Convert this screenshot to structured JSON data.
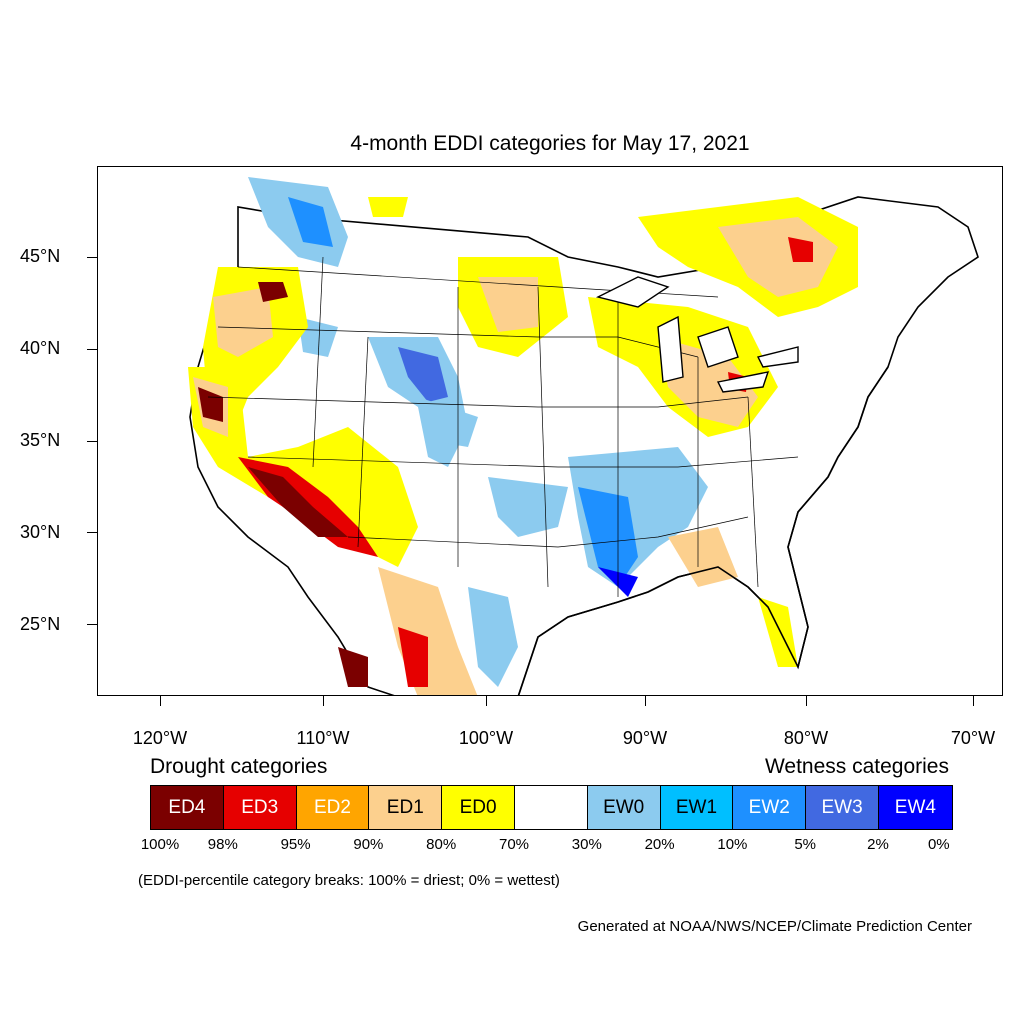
{
  "title": "4-month EDDI categories for May 17, 2021",
  "lat_labels": [
    "45°N",
    "40°N",
    "35°N",
    "30°N",
    "25°N"
  ],
  "lon_labels": [
    "120°W",
    "110°W",
    "100°W",
    "90°W",
    "80°W",
    "70°W"
  ],
  "drought_heading": "Drought categories",
  "wetness_heading": "Wetness categories",
  "legend": [
    {
      "label": "ED4",
      "color": "#7b0000",
      "text_color": "#ffffff"
    },
    {
      "label": "ED3",
      "color": "#e60000",
      "text_color": "#ffffff"
    },
    {
      "label": "ED2",
      "color": "#ffa500",
      "text_color": "#ffffff"
    },
    {
      "label": "ED1",
      "color": "#fcd08e",
      "text_color": "#000000"
    },
    {
      "label": "ED0",
      "color": "#ffff00",
      "text_color": "#000000"
    },
    {
      "label": "",
      "color": "#ffffff",
      "text_color": "#000000"
    },
    {
      "label": "EW0",
      "color": "#8ccbef",
      "text_color": "#000000"
    },
    {
      "label": "EW1",
      "color": "#00bfff",
      "text_color": "#000000"
    },
    {
      "label": "EW2",
      "color": "#1e90ff",
      "text_color": "#ffffff"
    },
    {
      "label": "EW3",
      "color": "#4169e1",
      "text_color": "#ffffff"
    },
    {
      "label": "EW4",
      "color": "#0000ff",
      "text_color": "#ffffff"
    }
  ],
  "percentiles": [
    "100%",
    "98%",
    "95%",
    "90%",
    "80%",
    "70%",
    "30%",
    "20%",
    "10%",
    "5%",
    "2%",
    "0%"
  ],
  "note": "(EDDI-percentile category breaks: 100% = driest; 0% = wettest)",
  "credit": "Generated at NOAA/NWS/NCEP/Climate Prediction Center"
}
